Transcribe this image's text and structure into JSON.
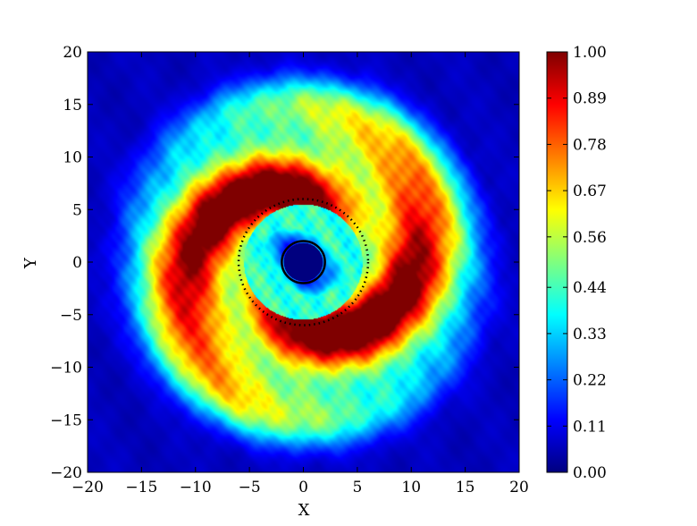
{
  "chart_data": {
    "type": "heatmap",
    "title": "",
    "xlabel": "X",
    "ylabel": "Y",
    "xlim": [
      -20,
      20
    ],
    "ylim": [
      -20,
      20
    ],
    "xticks": [
      -20,
      -15,
      -10,
      -5,
      0,
      5,
      10,
      15,
      20
    ],
    "yticks": [
      -20,
      -15,
      -10,
      -5,
      0,
      5,
      10,
      15,
      20
    ],
    "xtick_labels": [
      "−20",
      "−15",
      "−10",
      "−5",
      "0",
      "5",
      "10",
      "15",
      "20"
    ],
    "ytick_labels": [
      "−20",
      "−15",
      "−10",
      "−5",
      "0",
      "5",
      "10",
      "15",
      "20"
    ],
    "colorbar": {
      "colormap": "jet",
      "range": [
        0.0,
        1.0
      ],
      "ticks": [
        0.0,
        0.11,
        0.22,
        0.33,
        0.44,
        0.56,
        0.67,
        0.78,
        0.89,
        1.0
      ],
      "tick_labels": [
        "0.00",
        "0.11",
        "0.22",
        "0.33",
        "0.44",
        "0.56",
        "0.67",
        "0.78",
        "0.89",
        "1.00"
      ]
    },
    "field": {
      "description_of_pattern": "spiral disk",
      "inner_hole_radius": 1.8,
      "solid_circle_radius": 2.0,
      "dotted_circle_radius": 6.0,
      "peak_ring_radius": 8.0,
      "outer_edge_radius": 17.5,
      "spiral_arms": 2
    },
    "colors": {
      "jet": [
        "#00007f",
        "#0000ff",
        "#007fff",
        "#00ffff",
        "#7fff7f",
        "#ffff00",
        "#ff7f00",
        "#ff0000",
        "#7f0000"
      ],
      "background_low": "#0000a8",
      "circle_stroke": "#000000",
      "inner_fill": "#00007f"
    }
  }
}
